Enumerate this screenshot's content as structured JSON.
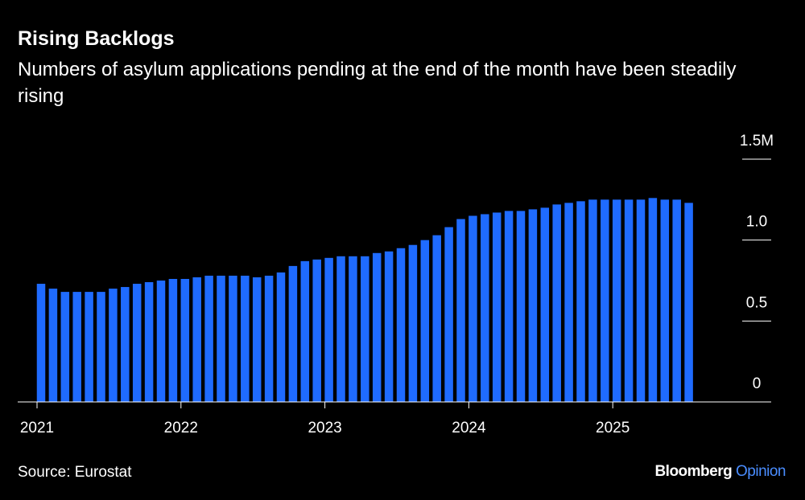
{
  "chart_data": {
    "type": "bar",
    "title": "Rising Backlogs",
    "subtitle": "Numbers of asylum applications pending at the end of the month have been steadily rising",
    "source": "Source: Eurostat",
    "brand": "Bloomberg",
    "brand_suffix": "Opinion",
    "color": "#1f6bff",
    "categories": [
      "2021",
      null,
      null,
      null,
      null,
      null,
      null,
      null,
      null,
      null,
      null,
      null,
      "2022",
      null,
      null,
      null,
      null,
      null,
      null,
      null,
      null,
      null,
      null,
      null,
      "2023",
      null,
      null,
      null,
      null,
      null,
      null,
      null,
      null,
      null,
      null,
      null,
      "2024",
      null,
      null,
      null,
      null,
      null,
      null,
      null,
      null,
      null,
      null,
      null,
      "2025",
      null,
      null,
      null,
      null,
      null,
      null
    ],
    "values": [
      0.73,
      0.7,
      0.68,
      0.68,
      0.68,
      0.68,
      0.7,
      0.71,
      0.73,
      0.74,
      0.75,
      0.76,
      0.76,
      0.77,
      0.78,
      0.78,
      0.78,
      0.78,
      0.77,
      0.78,
      0.8,
      0.84,
      0.87,
      0.88,
      0.89,
      0.9,
      0.9,
      0.9,
      0.92,
      0.93,
      0.95,
      0.97,
      1.0,
      1.03,
      1.08,
      1.13,
      1.15,
      1.16,
      1.17,
      1.18,
      1.18,
      1.19,
      1.2,
      1.22,
      1.23,
      1.24,
      1.25,
      1.25,
      1.25,
      1.25,
      1.25,
      1.26,
      1.25,
      1.25,
      1.23
    ],
    "ylim": [
      0,
      1.5
    ],
    "yticks": [
      0,
      0.5,
      {
        "value": 1,
        "label": "1.0"
      },
      {
        "value": 1.5,
        "label": "1.5M"
      }
    ]
  }
}
